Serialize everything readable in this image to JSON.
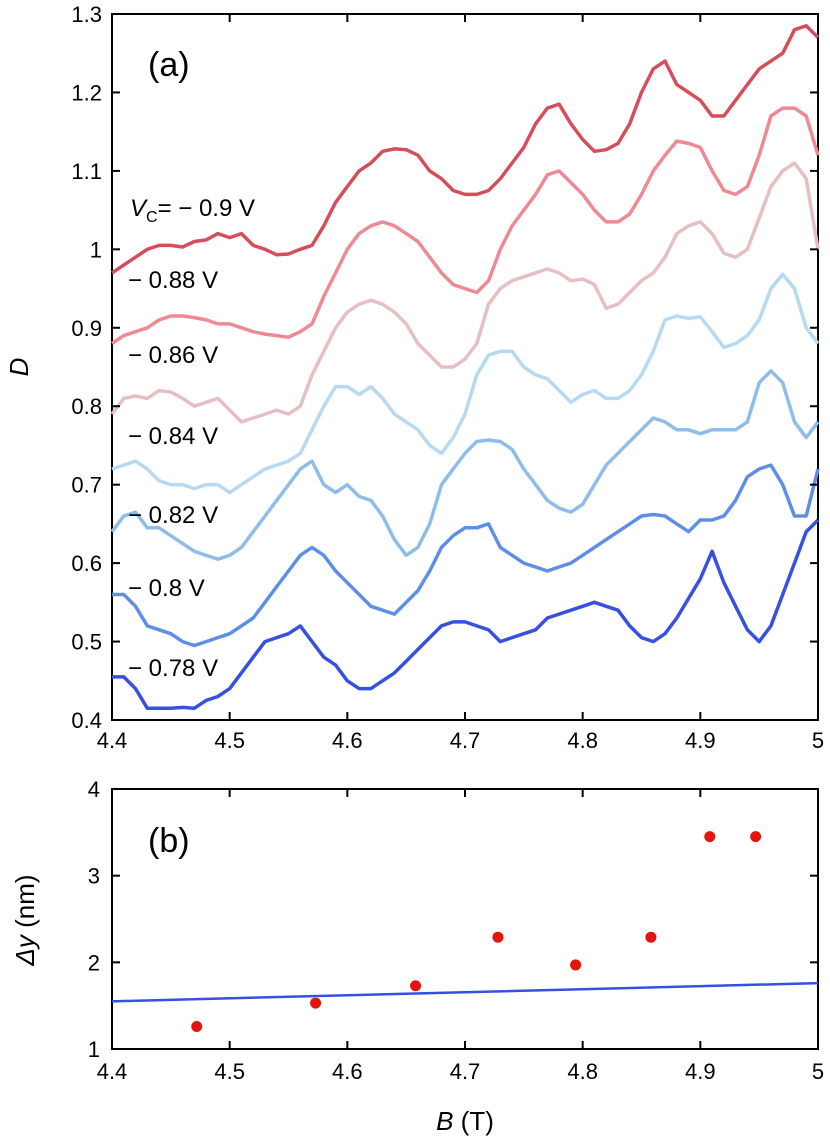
{
  "chart_data": [
    {
      "type": "line",
      "panel_label": "(a)",
      "ylabel": "D",
      "xlim": [
        4.4,
        5.0
      ],
      "ylim": [
        0.4,
        1.3
      ],
      "xticks": [
        "4.4",
        "4.5",
        "4.6",
        "4.7",
        "4.8",
        "4.9",
        "5"
      ],
      "yticks": [
        "0.4",
        "0.5",
        "0.6",
        "0.7",
        "0.8",
        "0.9",
        "1",
        "1.1",
        "1.2",
        "1.3"
      ],
      "x": [
        4.4,
        4.41,
        4.42,
        4.43,
        4.44,
        4.45,
        4.46,
        4.47,
        4.48,
        4.49,
        4.5,
        4.51,
        4.52,
        4.53,
        4.54,
        4.55,
        4.56,
        4.57,
        4.58,
        4.59,
        4.6,
        4.61,
        4.62,
        4.63,
        4.64,
        4.65,
        4.66,
        4.67,
        4.68,
        4.69,
        4.7,
        4.71,
        4.72,
        4.73,
        4.74,
        4.75,
        4.76,
        4.77,
        4.78,
        4.79,
        4.8,
        4.81,
        4.82,
        4.83,
        4.84,
        4.85,
        4.86,
        4.87,
        4.88,
        4.89,
        4.9,
        4.91,
        4.92,
        4.93,
        4.94,
        4.95,
        4.96,
        4.97,
        4.98,
        4.99,
        5.0
      ],
      "series": [
        {
          "name": "-0.9 V",
          "label_main": "V",
          "label_sub": "C",
          "label_rest": "= − 0.9 V",
          "color": "#d64e5c",
          "values": [
            0.97,
            0.98,
            0.99,
            1.0,
            1.005,
            1.005,
            1.003,
            1.01,
            1.012,
            1.02,
            1.015,
            1.02,
            1.005,
            1.0,
            0.993,
            0.994,
            1.0,
            1.005,
            1.03,
            1.06,
            1.08,
            1.1,
            1.11,
            1.125,
            1.128,
            1.127,
            1.12,
            1.1,
            1.09,
            1.075,
            1.07,
            1.07,
            1.075,
            1.09,
            1.11,
            1.13,
            1.16,
            1.18,
            1.185,
            1.16,
            1.14,
            1.125,
            1.127,
            1.135,
            1.16,
            1.2,
            1.23,
            1.24,
            1.21,
            1.2,
            1.19,
            1.17,
            1.17,
            1.19,
            1.21,
            1.23,
            1.24,
            1.25,
            1.28,
            1.285,
            1.27
          ]
        },
        {
          "name": "-0.88 V",
          "label_main": "",
          "label_sub": "",
          "label_rest": "− 0.88 V",
          "color": "#ee8a93",
          "values": [
            0.88,
            0.89,
            0.895,
            0.9,
            0.91,
            0.915,
            0.915,
            0.913,
            0.91,
            0.905,
            0.905,
            0.9,
            0.895,
            0.892,
            0.89,
            0.888,
            0.895,
            0.905,
            0.94,
            0.97,
            1.0,
            1.02,
            1.03,
            1.035,
            1.03,
            1.02,
            1.01,
            0.99,
            0.97,
            0.955,
            0.95,
            0.945,
            0.96,
            1.0,
            1.03,
            1.05,
            1.07,
            1.095,
            1.1,
            1.085,
            1.07,
            1.05,
            1.035,
            1.035,
            1.045,
            1.07,
            1.1,
            1.12,
            1.138,
            1.135,
            1.13,
            1.1,
            1.075,
            1.07,
            1.08,
            1.12,
            1.17,
            1.18,
            1.18,
            1.17,
            1.12
          ]
        },
        {
          "name": "-0.86 V",
          "label_main": "",
          "label_sub": "",
          "label_rest": "− 0.86 V",
          "color": "#e6bfc1",
          "values": [
            0.79,
            0.81,
            0.813,
            0.81,
            0.82,
            0.818,
            0.81,
            0.8,
            0.805,
            0.81,
            0.795,
            0.78,
            0.785,
            0.79,
            0.795,
            0.79,
            0.8,
            0.84,
            0.87,
            0.9,
            0.92,
            0.93,
            0.935,
            0.93,
            0.92,
            0.905,
            0.88,
            0.865,
            0.85,
            0.85,
            0.86,
            0.88,
            0.93,
            0.95,
            0.96,
            0.965,
            0.97,
            0.975,
            0.97,
            0.96,
            0.962,
            0.955,
            0.925,
            0.93,
            0.945,
            0.96,
            0.97,
            0.99,
            1.02,
            1.03,
            1.035,
            1.02,
            0.995,
            0.99,
            1.0,
            1.04,
            1.08,
            1.1,
            1.11,
            1.09,
            1.0
          ]
        },
        {
          "name": "-0.84 V",
          "label_main": "",
          "label_sub": "",
          "label_rest": "− 0.84 V",
          "color": "#b6daf1",
          "values": [
            0.72,
            0.725,
            0.73,
            0.72,
            0.705,
            0.7,
            0.7,
            0.695,
            0.7,
            0.7,
            0.69,
            0.7,
            0.71,
            0.72,
            0.725,
            0.73,
            0.74,
            0.77,
            0.8,
            0.825,
            0.825,
            0.815,
            0.825,
            0.81,
            0.79,
            0.78,
            0.77,
            0.75,
            0.74,
            0.76,
            0.79,
            0.84,
            0.865,
            0.87,
            0.87,
            0.85,
            0.84,
            0.835,
            0.82,
            0.805,
            0.815,
            0.82,
            0.81,
            0.81,
            0.82,
            0.84,
            0.87,
            0.91,
            0.915,
            0.912,
            0.914,
            0.895,
            0.875,
            0.88,
            0.89,
            0.91,
            0.95,
            0.968,
            0.95,
            0.9,
            0.88
          ]
        },
        {
          "name": "-0.82 V",
          "label_main": "",
          "label_sub": "",
          "label_rest": "− 0.82 V",
          "color": "#8fbdea",
          "values": [
            0.64,
            0.66,
            0.665,
            0.645,
            0.645,
            0.635,
            0.625,
            0.615,
            0.61,
            0.605,
            0.61,
            0.62,
            0.64,
            0.66,
            0.68,
            0.7,
            0.72,
            0.73,
            0.7,
            0.69,
            0.7,
            0.685,
            0.68,
            0.66,
            0.63,
            0.61,
            0.62,
            0.65,
            0.7,
            0.72,
            0.74,
            0.755,
            0.757,
            0.755,
            0.745,
            0.72,
            0.7,
            0.68,
            0.67,
            0.665,
            0.675,
            0.7,
            0.725,
            0.74,
            0.755,
            0.77,
            0.785,
            0.78,
            0.77,
            0.77,
            0.765,
            0.77,
            0.77,
            0.77,
            0.78,
            0.83,
            0.845,
            0.83,
            0.78,
            0.76,
            0.78
          ]
        },
        {
          "name": "-0.8 V",
          "label_main": "",
          "label_sub": "",
          "label_rest": "− 0.8 V",
          "color": "#5e8fe8",
          "values": [
            0.56,
            0.56,
            0.545,
            0.52,
            0.515,
            0.51,
            0.5,
            0.495,
            0.5,
            0.505,
            0.51,
            0.52,
            0.53,
            0.55,
            0.57,
            0.59,
            0.61,
            0.62,
            0.61,
            0.59,
            0.575,
            0.56,
            0.545,
            0.54,
            0.535,
            0.55,
            0.565,
            0.59,
            0.62,
            0.635,
            0.645,
            0.645,
            0.65,
            0.62,
            0.61,
            0.6,
            0.595,
            0.59,
            0.595,
            0.6,
            0.61,
            0.62,
            0.63,
            0.64,
            0.65,
            0.66,
            0.662,
            0.66,
            0.65,
            0.64,
            0.655,
            0.655,
            0.66,
            0.68,
            0.71,
            0.72,
            0.725,
            0.7,
            0.66,
            0.66,
            0.72
          ]
        },
        {
          "name": "-0.78 V",
          "label_main": "",
          "label_sub": "",
          "label_rest": "− 0.78 V",
          "color": "#3650e2",
          "values": [
            0.455,
            0.455,
            0.44,
            0.415,
            0.415,
            0.415,
            0.416,
            0.415,
            0.425,
            0.43,
            0.44,
            0.46,
            0.48,
            0.5,
            0.505,
            0.51,
            0.52,
            0.5,
            0.48,
            0.47,
            0.45,
            0.44,
            0.44,
            0.45,
            0.46,
            0.475,
            0.49,
            0.505,
            0.52,
            0.525,
            0.525,
            0.52,
            0.515,
            0.5,
            0.505,
            0.51,
            0.515,
            0.53,
            0.535,
            0.54,
            0.545,
            0.55,
            0.545,
            0.54,
            0.52,
            0.505,
            0.5,
            0.51,
            0.53,
            0.555,
            0.58,
            0.615,
            0.575,
            0.545,
            0.515,
            0.5,
            0.52,
            0.56,
            0.6,
            0.64,
            0.655
          ]
        }
      ]
    },
    {
      "type": "scatter",
      "panel_label": "(b)",
      "xlabel_italic": "B",
      "xlabel_rest": " (T)",
      "ylabel_italic": "Δy",
      "ylabel_rest": " (nm)",
      "xlim": [
        4.4,
        5.0
      ],
      "ylim": [
        1,
        4
      ],
      "xticks": [
        "4.4",
        "4.5",
        "4.6",
        "4.7",
        "4.8",
        "4.9",
        "5"
      ],
      "yticks": [
        "1",
        "2",
        "3",
        "4"
      ],
      "points": {
        "color": "#e0160f",
        "x": [
          4.472,
          4.573,
          4.658,
          4.728,
          4.794,
          4.858,
          4.908,
          4.947
        ],
        "y": [
          1.26,
          1.53,
          1.73,
          2.29,
          1.97,
          2.29,
          3.45,
          3.45
        ]
      },
      "line": {
        "color": "#3650e2",
        "x": [
          4.4,
          5.0
        ],
        "y": [
          1.55,
          1.76
        ]
      }
    }
  ]
}
